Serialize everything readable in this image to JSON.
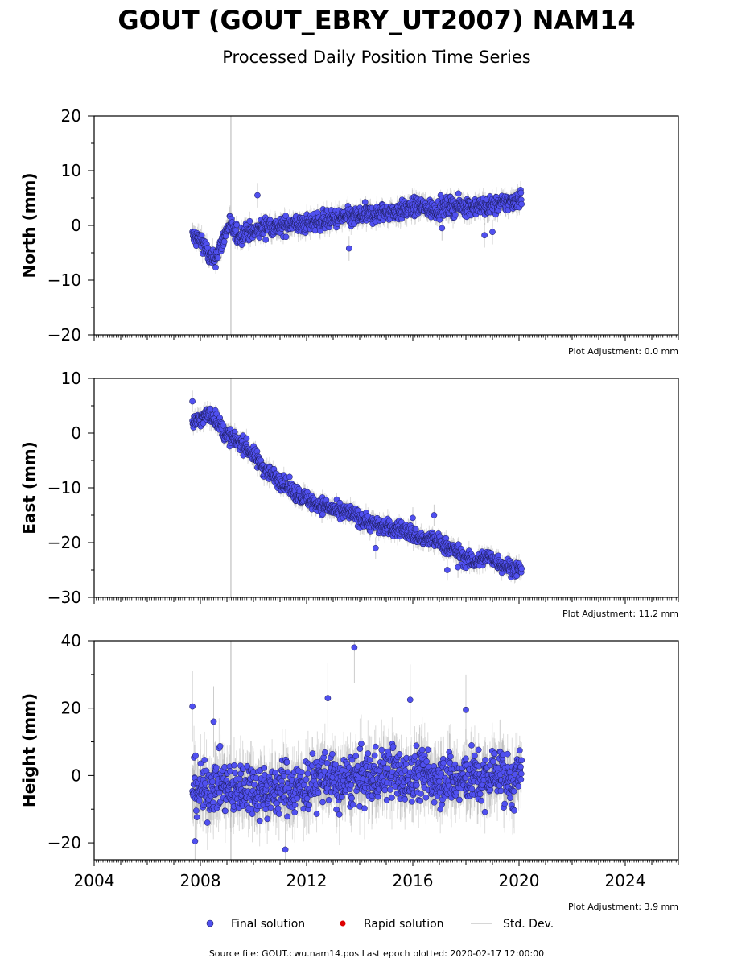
{
  "title": "GOUT (GOUT_EBRY_UT2007) NAM14",
  "subtitle": "Processed Daily Position Time Series",
  "source_line": "Source file: GOUT.cwu.nam14.pos  Last epoch plotted: 2020-02-17 12:00:00",
  "legend": {
    "final": "Final solution",
    "rapid": "Rapid solution",
    "std": "Std. Dev."
  },
  "colors": {
    "final_fill": "#5050f0",
    "final_edge": "#1a1a55",
    "rapid": "#dd0000",
    "std": "#c8c8c8",
    "equipment_line": "#cccccc"
  },
  "x_axis": {
    "min": 2004.0,
    "max": 2026.0,
    "major_ticks": [
      2004,
      2008,
      2012,
      2016,
      2020,
      2024
    ],
    "major_labels": [
      "2004",
      "2008",
      "2012",
      "2016",
      "2020",
      "2024"
    ]
  },
  "chart_data": [
    {
      "type": "scatter",
      "ylabel": "North (mm)",
      "ylim": [
        -20,
        20
      ],
      "yticks": [
        -20,
        -10,
        0,
        10,
        20
      ],
      "ytick_labels": [
        "−20",
        "−10",
        "0",
        "10",
        "20"
      ],
      "adjustment": "Plot Adjustment: 0.0 mm",
      "vline_x": 2009.15,
      "x": [
        2007.7,
        2007.9,
        2008.1,
        2008.3,
        2008.5,
        2008.7,
        2008.9,
        2009.1,
        2009.3,
        2009.5,
        2009.7,
        2010.0,
        2010.3,
        2010.6,
        2011.0,
        2011.4,
        2011.8,
        2012.2,
        2012.6,
        2013.0,
        2013.4,
        2013.8,
        2014.2,
        2014.6,
        2015.0,
        2015.4,
        2015.8,
        2016.2,
        2016.6,
        2017.0,
        2017.4,
        2017.8,
        2018.2,
        2018.6,
        2019.0,
        2019.4,
        2019.8,
        2020.1
      ],
      "y": [
        -2.0,
        -2.5,
        -3.0,
        -5.5,
        -6.5,
        -4.5,
        -2.0,
        0.5,
        -1.5,
        -2.0,
        -1.0,
        -1.5,
        -0.5,
        0.0,
        -0.5,
        0.5,
        0.0,
        0.5,
        1.0,
        1.0,
        1.5,
        1.5,
        2.0,
        2.0,
        2.5,
        2.5,
        3.0,
        3.5,
        3.0,
        3.0,
        3.5,
        3.5,
        3.5,
        3.5,
        3.5,
        4.0,
        4.5,
        5.0
      ],
      "spread": 1.5,
      "outliers": [
        [
          2010.15,
          5.5
        ],
        [
          2013.6,
          -4.2
        ],
        [
          2018.7,
          -1.8
        ],
        [
          2019.0,
          -1.2
        ],
        [
          2017.1,
          -0.5
        ]
      ]
    },
    {
      "type": "scatter",
      "ylabel": "East (mm)",
      "ylim": [
        -30,
        10
      ],
      "yticks": [
        -30,
        -20,
        -10,
        0,
        10
      ],
      "ytick_labels": [
        "−30",
        "−20",
        "−10",
        "0",
        "10"
      ],
      "adjustment": "Plot Adjustment: 11.2 mm",
      "vline_x": 2009.15,
      "x": [
        2007.7,
        2008.0,
        2008.3,
        2008.6,
        2008.9,
        2009.2,
        2009.6,
        2010.0,
        2010.4,
        2010.8,
        2011.2,
        2011.6,
        2012.0,
        2012.4,
        2012.8,
        2013.2,
        2013.6,
        2014.0,
        2014.4,
        2014.8,
        2015.2,
        2015.6,
        2016.0,
        2016.4,
        2016.8,
        2017.2,
        2017.6,
        2018.0,
        2018.4,
        2018.8,
        2019.2,
        2019.6,
        2020.1
      ],
      "y": [
        2.0,
        2.5,
        3.5,
        2.5,
        0.0,
        -1.0,
        -2.0,
        -4.0,
        -6.5,
        -8.0,
        -9.5,
        -11.0,
        -12.0,
        -13.0,
        -13.5,
        -14.5,
        -14.5,
        -15.5,
        -16.5,
        -17.0,
        -17.5,
        -17.5,
        -18.5,
        -19.5,
        -19.5,
        -20.5,
        -21.5,
        -23.0,
        -23.5,
        -22.5,
        -23.5,
        -24.5,
        -25.0
      ],
      "spread": 1.3,
      "outliers": [
        [
          2007.7,
          5.8
        ],
        [
          2014.6,
          -21.0
        ],
        [
          2016.8,
          -15.0
        ],
        [
          2017.3,
          -25.0
        ],
        [
          2017.7,
          -24.5
        ],
        [
          2016.0,
          -15.5
        ]
      ]
    },
    {
      "type": "scatter",
      "ylabel": "Height (mm)",
      "ylim": [
        -25,
        40
      ],
      "yticks": [
        -20,
        0,
        20,
        40
      ],
      "ytick_labels": [
        "−20",
        "0",
        "20",
        "40"
      ],
      "adjustment": "Plot Adjustment: 3.9 mm",
      "vline_x": 2009.15,
      "x": [
        2007.7,
        2008.2,
        2008.7,
        2009.2,
        2009.7,
        2010.2,
        2010.7,
        2011.2,
        2011.7,
        2012.2,
        2012.7,
        2013.2,
        2013.7,
        2014.2,
        2014.7,
        2015.2,
        2015.7,
        2016.2,
        2016.7,
        2017.2,
        2017.7,
        2018.2,
        2018.7,
        2019.2,
        2019.7,
        2020.1
      ],
      "y": [
        -3.0,
        -5.0,
        -2.0,
        -5.0,
        -3.0,
        -4.0,
        -5.0,
        -3.0,
        -4.0,
        -2.0,
        0.0,
        -3.0,
        -1.0,
        -1.0,
        0.0,
        2.0,
        -2.0,
        1.0,
        -1.0,
        0.0,
        -2.0,
        0.0,
        -2.0,
        2.0,
        -3.0,
        0.0
      ],
      "spread": 7.0,
      "outliers": [
        [
          2007.7,
          20.5
        ],
        [
          2008.5,
          16.0
        ],
        [
          2012.8,
          23.0
        ],
        [
          2013.8,
          38.0
        ],
        [
          2015.9,
          22.5
        ],
        [
          2018.0,
          19.5
        ],
        [
          2007.8,
          -19.5
        ],
        [
          2011.2,
          -22.0
        ]
      ]
    }
  ]
}
